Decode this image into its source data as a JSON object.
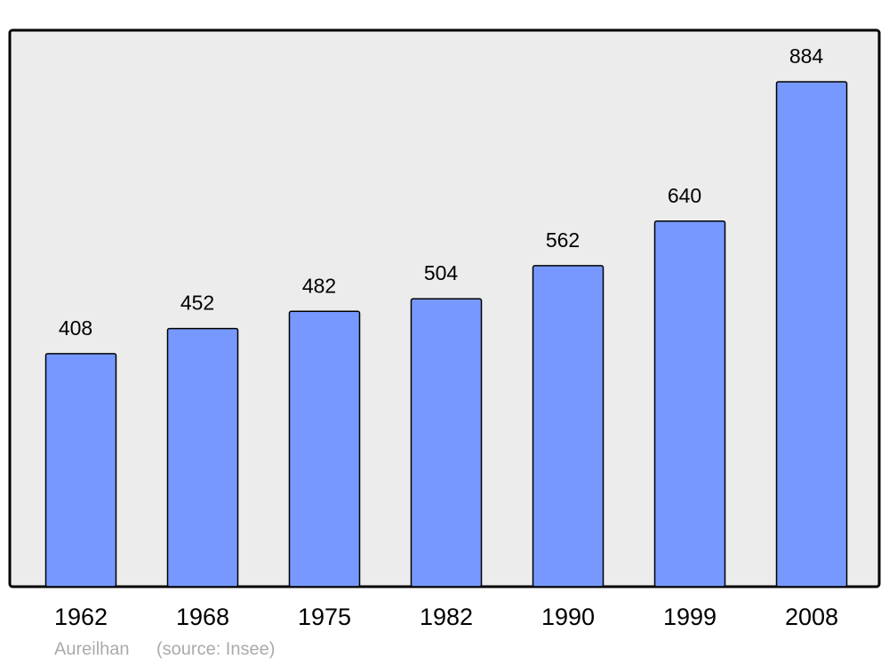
{
  "chart_data": {
    "type": "bar",
    "categories": [
      "1962",
      "1968",
      "1975",
      "1982",
      "1990",
      "1999",
      "2008"
    ],
    "values": [
      408,
      452,
      482,
      504,
      562,
      640,
      884
    ],
    "color": "#7799ff",
    "place": "Aureilhan",
    "source": "(source: Insee)"
  }
}
